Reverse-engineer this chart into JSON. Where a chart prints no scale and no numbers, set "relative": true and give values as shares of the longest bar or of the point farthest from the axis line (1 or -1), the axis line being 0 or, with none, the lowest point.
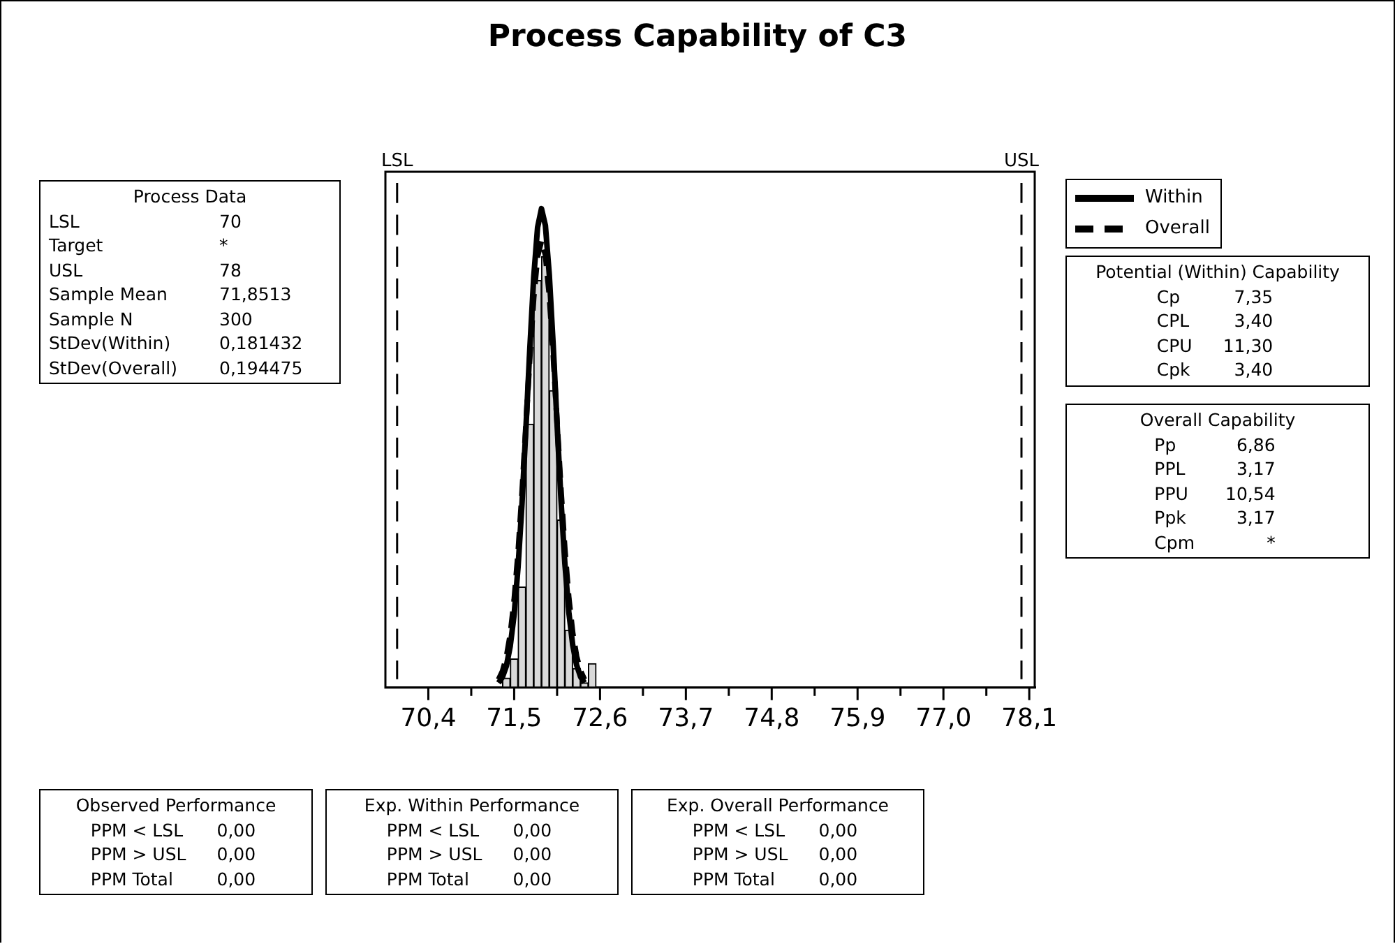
{
  "chart_data": {
    "type": "histogram",
    "title": "Process Capability of C3",
    "relative": true,
    "bins": [
      71.35,
      71.45,
      71.55,
      71.65,
      71.75,
      71.85,
      71.95,
      72.05,
      72.15,
      72.25,
      72.35,
      72.45,
      72.55
    ],
    "values": [
      0.02,
      0.06,
      0.21,
      0.55,
      0.85,
      0.9,
      0.62,
      0.35,
      0.12,
      0.04,
      0.01,
      0.05
    ],
    "color": "#d9d9d9",
    "series": [
      {
        "type": "line",
        "name": "Within",
        "color": "#000000",
        "line_style": "solid",
        "x": [
          71.3,
          71.35,
          71.4,
          71.45,
          71.5,
          71.55,
          71.6,
          71.65,
          71.7,
          71.75,
          71.8,
          71.85,
          71.9,
          71.95,
          72.0,
          72.05,
          72.1,
          72.15,
          72.2,
          72.25,
          72.3,
          72.35,
          72.4
        ],
        "values": [
          0.01,
          0.022,
          0.045,
          0.087,
          0.153,
          0.252,
          0.383,
          0.54,
          0.706,
          0.856,
          0.961,
          1.0,
          0.965,
          0.862,
          0.715,
          0.549,
          0.391,
          0.258,
          0.158,
          0.089,
          0.047,
          0.023,
          0.01
        ]
      },
      {
        "type": "line",
        "name": "Overall",
        "color": "#000000",
        "line_style": "dashed",
        "x": [
          71.3,
          71.35,
          71.4,
          71.45,
          71.5,
          71.55,
          71.6,
          71.65,
          71.7,
          71.75,
          71.8,
          71.85,
          71.9,
          71.95,
          72.0,
          72.05,
          72.1,
          72.15,
          72.2,
          72.25,
          72.3,
          72.35,
          72.4
        ],
        "values": [
          0.017,
          0.034,
          0.063,
          0.111,
          0.183,
          0.281,
          0.405,
          0.546,
          0.689,
          0.814,
          0.901,
          0.933,
          0.904,
          0.82,
          0.697,
          0.553,
          0.412,
          0.287,
          0.187,
          0.114,
          0.065,
          0.035,
          0.017
        ]
      }
    ],
    "xlim": [
      69.85,
      78.17
    ],
    "xticks": [
      {
        "value": 70.4,
        "label": "70,4"
      },
      {
        "value": 70.95,
        "label": null
      },
      {
        "value": 71.5,
        "label": "71,5"
      },
      {
        "value": 72.05,
        "label": null
      },
      {
        "value": 72.6,
        "label": "72,6"
      },
      {
        "value": 73.15,
        "label": null
      },
      {
        "value": 73.7,
        "label": "73,7"
      },
      {
        "value": 74.25,
        "label": null
      },
      {
        "value": 74.8,
        "label": "74,8"
      },
      {
        "value": 75.35,
        "label": null
      },
      {
        "value": 75.9,
        "label": "75,9"
      },
      {
        "value": 76.45,
        "label": null
      },
      {
        "value": 77.0,
        "label": "77,0"
      },
      {
        "value": 77.55,
        "label": null
      },
      {
        "value": 78.1,
        "label": "78,1"
      }
    ],
    "ref_lines": [
      {
        "axis": "x",
        "value": 70,
        "label": "LSL",
        "line_style": "dashed",
        "color": "#000000"
      },
      {
        "axis": "x",
        "value": 78,
        "label": "USL",
        "line_style": "dashed",
        "color": "#000000"
      }
    ],
    "annotations": [
      "Process Data\nLSL\t70\nTarget\t*\nUSL\t78\nSample Mean\t71,8513\nSample N\t300\nStDev(Within)\t0,181432\nStDev(Overall)\t0,194475",
      "Potential (Within) Capability\nCp\t7,35\nCPL\t3,40\nCPU\t11,30\nCpk\t3,40",
      "Overall Capability\nPp\t6,86\nPPL\t3,17\nPPU\t10,54\nPpk\t3,17\nCpm\t*",
      "Observed Performance\nPPM < LSL\t0,00\nPPM > USL\t0,00\nPPM Total\t0,00",
      "Exp. Within Performance\nPPM < LSL\t0,00\nPPM > USL\t0,00\nPPM Total\t0,00",
      "Exp. Overall Performance\nPPM < LSL\t0,00\nPPM > USL\t0,00\nPPM Total\t0,00"
    ],
    "legend": "top right",
    "marker": "none"
  }
}
